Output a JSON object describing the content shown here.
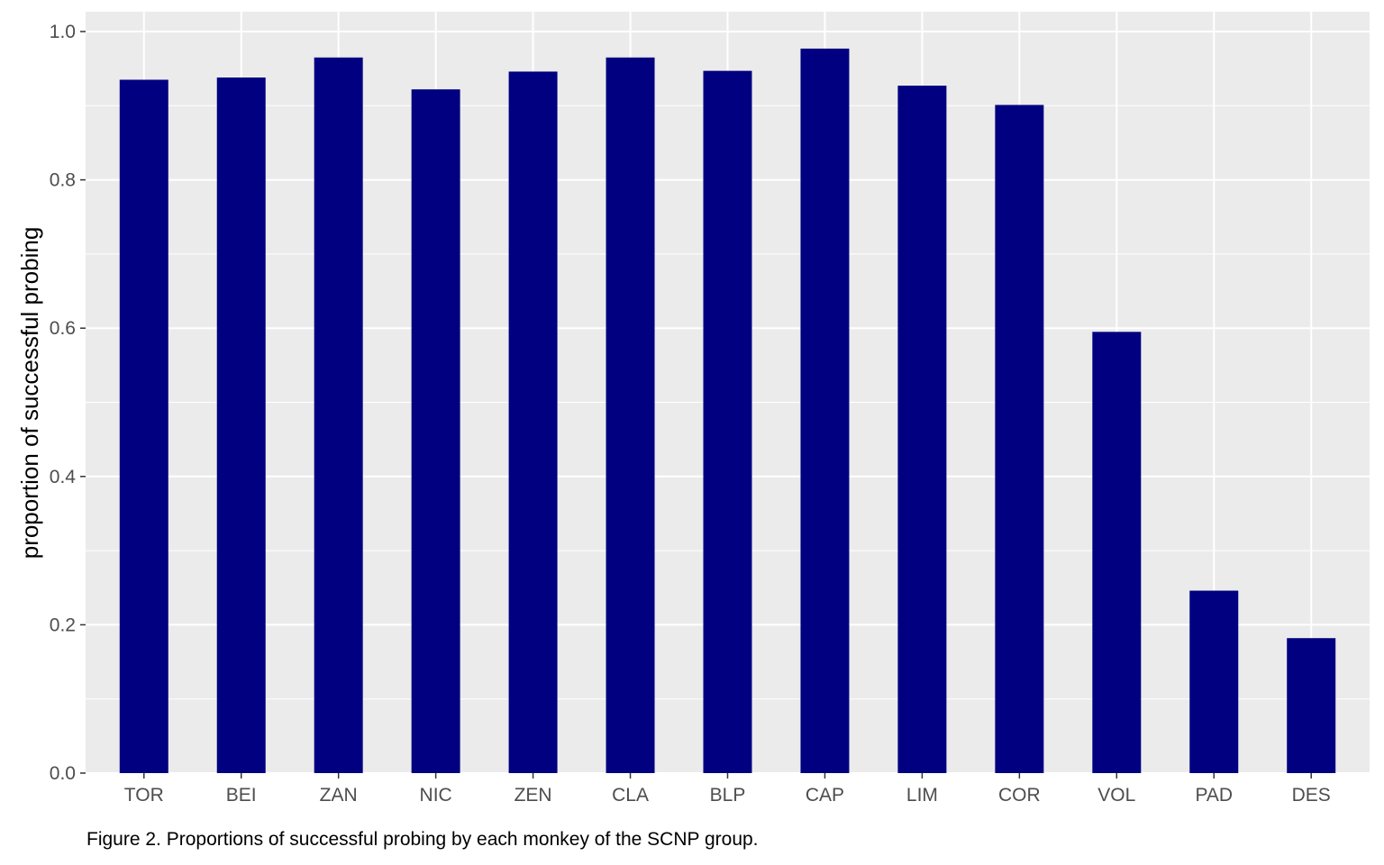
{
  "chart_data": {
    "type": "bar",
    "categories": [
      "TOR",
      "BEI",
      "ZAN",
      "NIC",
      "ZEN",
      "CLA",
      "BLP",
      "CAP",
      "LIM",
      "COR",
      "VOL",
      "PAD",
      "DES"
    ],
    "values": [
      0.935,
      0.938,
      0.965,
      0.922,
      0.946,
      0.965,
      0.947,
      0.977,
      0.927,
      0.901,
      0.595,
      0.246,
      0.182
    ],
    "xlabel": "",
    "ylabel": "proportion of successful probing",
    "ylim": [
      0,
      1.0
    ],
    "yticks": [
      0.0,
      0.2,
      0.4,
      0.6,
      0.8,
      1.0
    ],
    "ytick_labels": [
      "0.0",
      "0.2",
      "0.4",
      "0.6",
      "0.8",
      "1.0"
    ],
    "grid": true,
    "colors": {
      "bar": "#000080",
      "panel": "#ebebeb",
      "grid": "#ffffff"
    }
  },
  "caption": "Figure 2. Proportions of successful probing by each monkey of the SCNP group."
}
